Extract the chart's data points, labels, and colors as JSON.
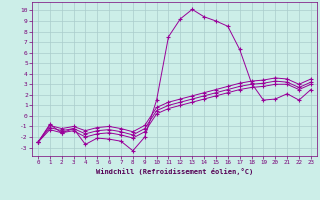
{
  "xlabel": "Windchill (Refroidissement éolien,°C)",
  "background_color": "#cceee8",
  "grid_color": "#aacccc",
  "line_color": "#990099",
  "xlim": [
    -0.5,
    23.5
  ],
  "ylim": [
    -3.8,
    10.8
  ],
  "xticks": [
    0,
    1,
    2,
    3,
    4,
    5,
    6,
    7,
    8,
    9,
    10,
    11,
    12,
    13,
    14,
    15,
    16,
    17,
    18,
    19,
    20,
    21,
    22,
    23
  ],
  "yticks": [
    -3,
    -2,
    -1,
    0,
    1,
    2,
    3,
    4,
    5,
    6,
    7,
    8,
    9,
    10
  ],
  "line1_x": [
    0,
    1,
    2,
    3,
    4,
    5,
    6,
    7,
    8,
    9,
    10,
    11,
    12,
    13,
    14,
    15,
    16,
    17,
    18,
    19,
    20,
    21,
    22,
    23
  ],
  "line1_y": [
    -2.5,
    -0.8,
    -1.6,
    -1.2,
    -2.7,
    -2.1,
    -2.2,
    -2.4,
    -3.3,
    -2.0,
    1.5,
    7.5,
    9.2,
    10.1,
    9.4,
    9.0,
    8.5,
    6.3,
    3.1,
    1.5,
    1.6,
    2.1,
    1.5,
    2.5
  ],
  "line2_x": [
    0,
    1,
    2,
    3,
    4,
    5,
    6,
    7,
    8,
    9,
    10,
    11,
    12,
    13,
    14,
    15,
    16,
    17,
    18,
    19,
    20,
    21,
    22,
    23
  ],
  "line2_y": [
    -2.5,
    -1.3,
    -1.6,
    -1.4,
    -2.0,
    -1.7,
    -1.6,
    -1.8,
    -2.1,
    -1.5,
    0.2,
    0.7,
    1.0,
    1.3,
    1.6,
    1.9,
    2.2,
    2.5,
    2.7,
    2.8,
    3.0,
    3.0,
    2.5,
    3.0
  ],
  "line3_x": [
    0,
    1,
    2,
    3,
    4,
    5,
    6,
    7,
    8,
    9,
    10,
    11,
    12,
    13,
    14,
    15,
    16,
    17,
    18,
    19,
    20,
    21,
    22,
    23
  ],
  "line3_y": [
    -2.5,
    -1.1,
    -1.4,
    -1.2,
    -1.7,
    -1.4,
    -1.3,
    -1.5,
    -1.8,
    -1.2,
    0.5,
    1.0,
    1.3,
    1.6,
    1.9,
    2.2,
    2.5,
    2.8,
    3.0,
    3.1,
    3.3,
    3.2,
    2.7,
    3.2
  ],
  "line4_x": [
    0,
    1,
    2,
    3,
    4,
    5,
    6,
    7,
    8,
    9,
    10,
    11,
    12,
    13,
    14,
    15,
    16,
    17,
    18,
    19,
    20,
    21,
    22,
    23
  ],
  "line4_y": [
    -2.5,
    -0.9,
    -1.2,
    -1.0,
    -1.4,
    -1.1,
    -1.0,
    -1.2,
    -1.5,
    -0.9,
    0.8,
    1.3,
    1.6,
    1.9,
    2.2,
    2.5,
    2.8,
    3.1,
    3.3,
    3.4,
    3.6,
    3.5,
    3.0,
    3.5
  ]
}
